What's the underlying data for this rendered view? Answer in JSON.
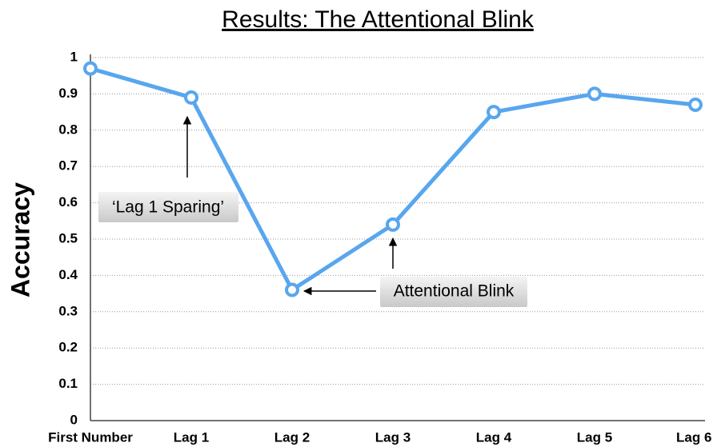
{
  "chart_data": {
    "type": "line",
    "title": "Results: The Attentional Blink",
    "y_label": "Accuracy",
    "categories": [
      "First Number",
      "Lag 1",
      "Lag 2",
      "Lag 3",
      "Lag 4",
      "Lag 5",
      "Lag 6"
    ],
    "values": [
      0.97,
      0.89,
      0.36,
      0.54,
      0.85,
      0.9,
      0.87
    ],
    "color": "#58a6ee",
    "ylim": [
      0,
      1
    ],
    "yticks": [
      0,
      0.1,
      0.2,
      0.3,
      0.4,
      0.5,
      0.6,
      0.7,
      0.8,
      0.9,
      1
    ],
    "grid": true,
    "annotations": [
      "‘Lag 1 Sparing’",
      "Attentional Blink"
    ]
  }
}
